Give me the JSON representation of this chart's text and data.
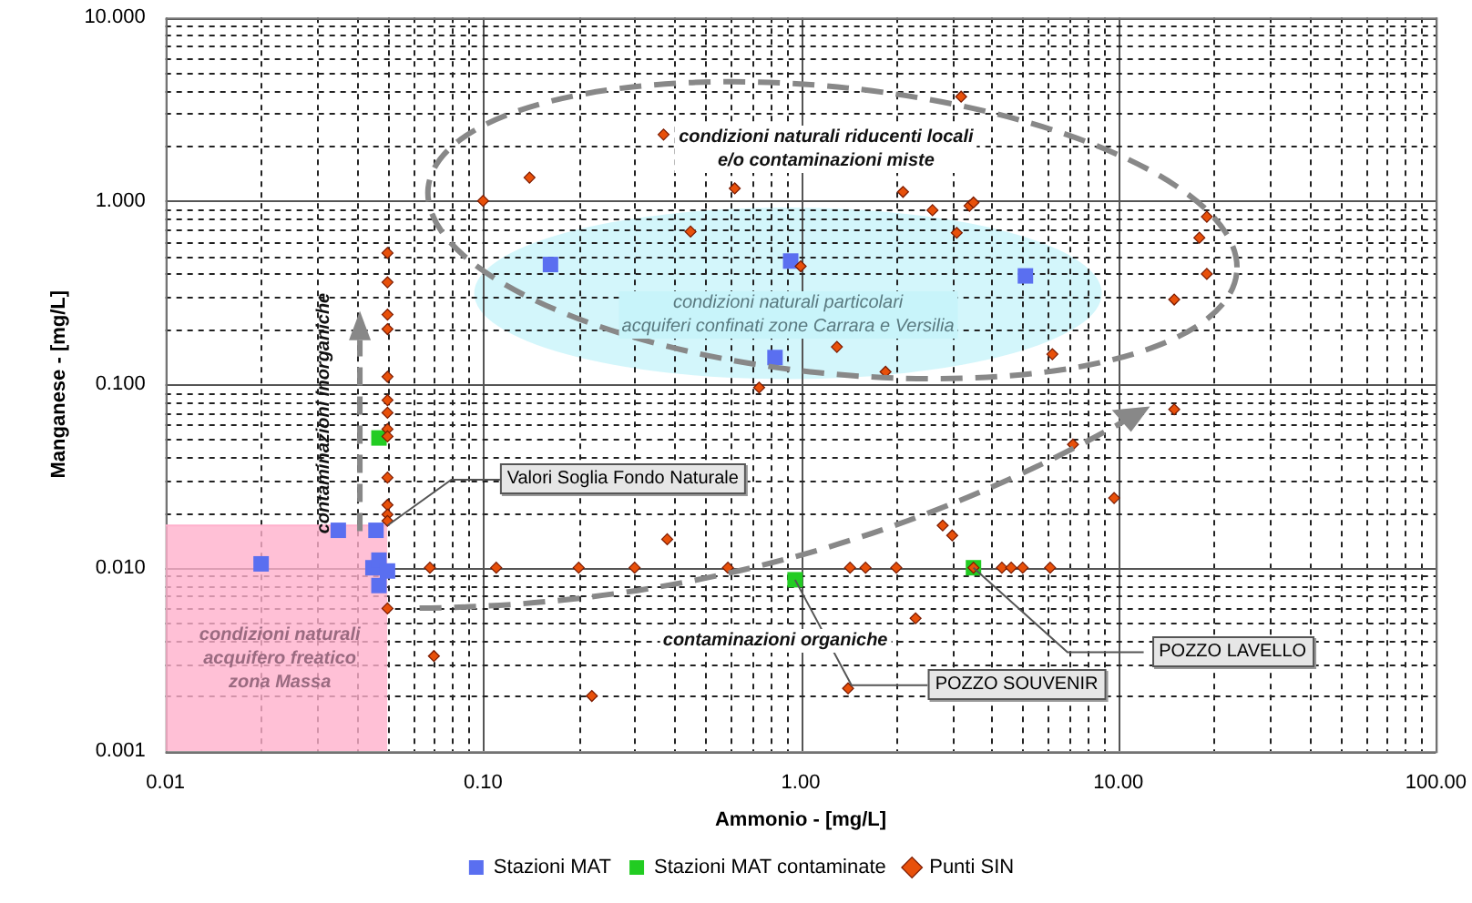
{
  "chart_data": {
    "type": "scatter",
    "xlabel": "Ammonio - [mg/L]",
    "ylabel": "Manganese - [mg/L]",
    "log": "xy",
    "grid": true,
    "legend": "bottom",
    "xlim": [
      0.01,
      100
    ],
    "ylim": [
      0.001,
      10
    ],
    "xticks": [
      {
        "value": 0.01,
        "label": "0.01"
      },
      {
        "value": 0.02,
        "label": null
      },
      {
        "value": 0.03,
        "label": null
      },
      {
        "value": 0.04,
        "label": null
      },
      {
        "value": 0.05,
        "label": null
      },
      {
        "value": 0.06,
        "label": null
      },
      {
        "value": 0.07,
        "label": null
      },
      {
        "value": 0.08,
        "label": null
      },
      {
        "value": 0.09,
        "label": null
      },
      {
        "value": 0.1,
        "label": "0.10"
      },
      {
        "value": 0.2,
        "label": null
      },
      {
        "value": 0.3,
        "label": null
      },
      {
        "value": 0.4,
        "label": null
      },
      {
        "value": 0.5,
        "label": null
      },
      {
        "value": 0.6,
        "label": null
      },
      {
        "value": 0.7,
        "label": null
      },
      {
        "value": 0.8,
        "label": null
      },
      {
        "value": 0.9,
        "label": null
      },
      {
        "value": 1,
        "label": "1.00"
      },
      {
        "value": 2,
        "label": null
      },
      {
        "value": 3,
        "label": null
      },
      {
        "value": 4,
        "label": null
      },
      {
        "value": 5,
        "label": null
      },
      {
        "value": 6,
        "label": null
      },
      {
        "value": 7,
        "label": null
      },
      {
        "value": 8,
        "label": null
      },
      {
        "value": 9,
        "label": null
      },
      {
        "value": 10,
        "label": "10.00"
      },
      {
        "value": 20,
        "label": null
      },
      {
        "value": 30,
        "label": null
      },
      {
        "value": 40,
        "label": null
      },
      {
        "value": 50,
        "label": null
      },
      {
        "value": 60,
        "label": null
      },
      {
        "value": 70,
        "label": null
      },
      {
        "value": 80,
        "label": null
      },
      {
        "value": 90,
        "label": null
      },
      {
        "value": 100,
        "label": "100.00"
      }
    ],
    "yticks": [
      {
        "value": 0.001,
        "label": "0.001"
      },
      {
        "value": 0.002,
        "label": null
      },
      {
        "value": 0.003,
        "label": null
      },
      {
        "value": 0.004,
        "label": null
      },
      {
        "value": 0.005,
        "label": null
      },
      {
        "value": 0.006,
        "label": null
      },
      {
        "value": 0.007,
        "label": null
      },
      {
        "value": 0.008,
        "label": null
      },
      {
        "value": 0.009,
        "label": null
      },
      {
        "value": 0.01,
        "label": "0.010"
      },
      {
        "value": 0.02,
        "label": null
      },
      {
        "value": 0.03,
        "label": null
      },
      {
        "value": 0.04,
        "label": null
      },
      {
        "value": 0.05,
        "label": null
      },
      {
        "value": 0.06,
        "label": null
      },
      {
        "value": 0.07,
        "label": null
      },
      {
        "value": 0.08,
        "label": null
      },
      {
        "value": 0.09,
        "label": null
      },
      {
        "value": 0.1,
        "label": "0.100"
      },
      {
        "value": 0.2,
        "label": null
      },
      {
        "value": 0.3,
        "label": null
      },
      {
        "value": 0.4,
        "label": null
      },
      {
        "value": 0.5,
        "label": null
      },
      {
        "value": 0.6,
        "label": null
      },
      {
        "value": 0.7,
        "label": null
      },
      {
        "value": 0.8,
        "label": null
      },
      {
        "value": 0.9,
        "label": null
      },
      {
        "value": 1,
        "label": "1.000"
      },
      {
        "value": 2,
        "label": null
      },
      {
        "value": 3,
        "label": null
      },
      {
        "value": 4,
        "label": null
      },
      {
        "value": 5,
        "label": null
      },
      {
        "value": 6,
        "label": null
      },
      {
        "value": 7,
        "label": null
      },
      {
        "value": 8,
        "label": null
      },
      {
        "value": 9,
        "label": null
      },
      {
        "value": 10,
        "label": "10.000"
      }
    ],
    "series": [
      {
        "type": "area",
        "color": "#ffb0cc",
        "x": [
          0.01,
          0.05
        ],
        "values": [
          0.017,
          0.017
        ]
      },
      {
        "name": "Stazioni MAT",
        "color": "#5a6ff0",
        "marker": "square",
        "x": [
          0.163,
          0.93,
          0.83,
          5.1,
          0.02,
          0.035,
          0.046,
          0.045,
          0.047,
          0.047,
          0.05
        ],
        "values": [
          0.45,
          0.47,
          0.14,
          0.39,
          0.0105,
          0.016,
          0.016,
          0.01,
          0.011,
          0.008,
          0.0096
        ]
      },
      {
        "name": "Stazioni MAT contaminate",
        "color": "#22cc22",
        "marker": "square",
        "x": [
          0.047,
          0.96,
          3.5
        ],
        "values": [
          0.051,
          0.0086,
          0.01
        ]
      },
      {
        "name": "Punti SIN",
        "color": "#e8500a",
        "marker": "diamond",
        "x": [
          0.37,
          0.14,
          0.1,
          0.62,
          0.45,
          1.0,
          0.05,
          0.05,
          0.05,
          0.05,
          0.05,
          0.74,
          3.2,
          2.1,
          2.6,
          3.4,
          3.5,
          3.1,
          19,
          18,
          19,
          15,
          1.3,
          1.85,
          6.2,
          0.05,
          0.05,
          0.05,
          0.05,
          0.05,
          0.05,
          0.05,
          0.05,
          0.05,
          0.068,
          0.11,
          0.2,
          0.3,
          0.59,
          0.38,
          0.07,
          0.22,
          1.43,
          1.6,
          2.0,
          2.8,
          3.0,
          4.3,
          4.6,
          5.0,
          6.1,
          3.5,
          7.2,
          9.7,
          15,
          2.3,
          1.41
        ],
        "values": [
          2.3,
          1.34,
          1.0,
          1.17,
          0.68,
          0.44,
          0.52,
          0.36,
          0.24,
          0.2,
          0.11,
          0.096,
          3.7,
          1.12,
          0.89,
          0.94,
          0.98,
          0.67,
          0.82,
          0.63,
          0.4,
          0.29,
          0.16,
          0.117,
          0.146,
          0.082,
          0.07,
          0.057,
          0.052,
          0.031,
          0.022,
          0.0195,
          0.018,
          0.006,
          0.01,
          0.01,
          0.01,
          0.01,
          0.01,
          0.0143,
          0.0033,
          0.002,
          0.01,
          0.01,
          0.01,
          0.017,
          0.015,
          0.01,
          0.01,
          0.01,
          0.01,
          0.01,
          0.047,
          0.024,
          0.073,
          0.0053,
          0.0022
        ]
      }
    ],
    "annotations": [
      "condizioni naturali riducenti locali\ne/o contaminazioni miste",
      "condizioni naturali particolari\nacquiferi confinati zone Carrara e Versilia",
      "contaminazioni inorganiche",
      "contaminazioni organiche",
      "condizioni naturali\nacquifero freatico\nzona Massa",
      {
        "text": "Valori Soglia Fondo Naturale",
        "x": 0.05,
        "y": 0.017
      },
      {
        "text": "POZZO SOUVENIR",
        "x": 0.96,
        "y": 0.0086
      },
      {
        "text": "POZZO LAVELLO",
        "x": 3.5,
        "y": 0.01
      }
    ]
  }
}
